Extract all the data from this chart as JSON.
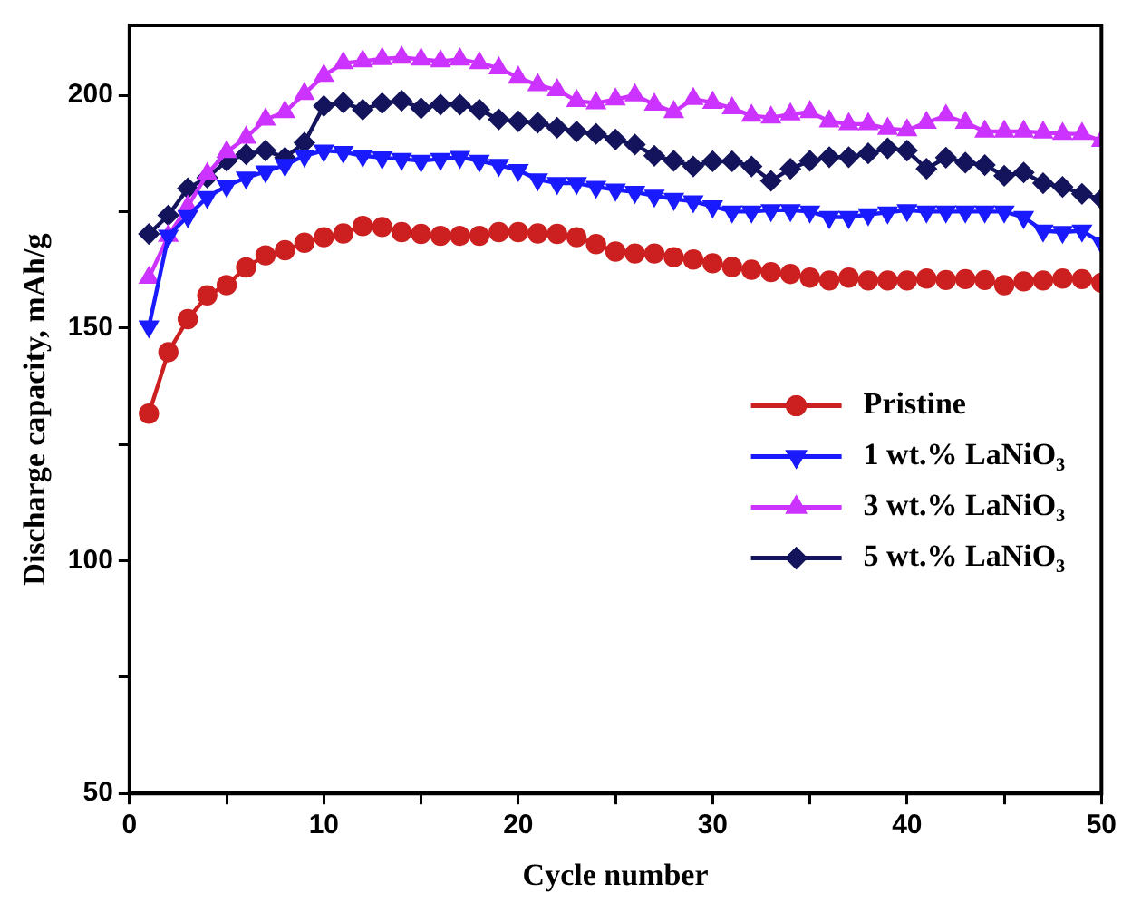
{
  "chart_data": {
    "type": "line",
    "xlabel": "Cycle number",
    "ylabel": "Discharge capacity, mAh/g",
    "x": [
      1,
      2,
      3,
      4,
      5,
      6,
      7,
      8,
      9,
      10,
      11,
      12,
      13,
      14,
      15,
      16,
      17,
      18,
      19,
      20,
      21,
      22,
      23,
      24,
      25,
      26,
      27,
      28,
      29,
      30,
      31,
      32,
      33,
      34,
      35,
      36,
      37,
      38,
      39,
      40,
      41,
      42,
      43,
      44,
      45,
      46,
      47,
      48,
      49,
      50
    ],
    "xlim": [
      0,
      50
    ],
    "xticks": [
      0,
      {
        "value": 5,
        "label": null
      },
      10,
      {
        "value": 15,
        "label": null
      },
      20,
      {
        "value": 25,
        "label": null
      },
      30,
      {
        "value": 35,
        "label": null
      },
      40,
      {
        "value": 45,
        "label": null
      },
      50
    ],
    "ylim": [
      50,
      215
    ],
    "yticks": [
      50,
      {
        "value": 75,
        "label": null
      },
      100,
      {
        "value": 125,
        "label": null
      },
      150,
      {
        "value": 175,
        "label": null
      },
      200
    ],
    "grid": false,
    "legend": "center right",
    "line_style": "solid",
    "series": [
      {
        "name": "Pristine",
        "color": "#cc1f1f",
        "marker": "circle",
        "values": [
          131.6,
          144.8,
          151.9,
          157,
          159.2,
          163,
          165.6,
          166.7,
          168.3,
          169.5,
          170.3,
          171.9,
          171.7,
          170.6,
          170.2,
          169.8,
          169.8,
          169.8,
          170.6,
          170.6,
          170.3,
          170.2,
          169.5,
          168,
          166.4,
          166,
          166,
          165.2,
          164.7,
          163.9,
          163.1,
          162.5,
          162,
          161.6,
          160.8,
          160.2,
          160.8,
          160.2,
          160.2,
          160.2,
          160.6,
          160.3,
          160.5,
          160.3,
          159.2,
          160,
          160.2,
          160.6,
          160.5,
          159.7
        ]
      },
      {
        "name": "1 wt.% LaNiO₃",
        "color": "#1a1aff",
        "marker": "triangle-down",
        "values": [
          150.3,
          169.8,
          174,
          178.1,
          180.5,
          182.3,
          183.6,
          185,
          187,
          188.1,
          187.8,
          187,
          186.6,
          186.3,
          185.9,
          186.3,
          186.7,
          185.9,
          185,
          183.9,
          181.9,
          181.1,
          181.1,
          180.3,
          179.7,
          179.2,
          178.4,
          177.7,
          177.2,
          176.1,
          175,
          175,
          175.3,
          175.3,
          175,
          173.8,
          173.8,
          174.4,
          174.8,
          175.3,
          175,
          175,
          175,
          175,
          175,
          173.8,
          170.9,
          170.6,
          170.9,
          168.3
        ]
      },
      {
        "name": "3 wt.% LaNiO₃",
        "color": "#cc33ff",
        "marker": "triangle",
        "values": [
          160.8,
          169.8,
          176.1,
          183.1,
          187.8,
          190.9,
          194.8,
          196.4,
          200.3,
          204.2,
          206.9,
          207.3,
          207.8,
          208.1,
          207.7,
          207.3,
          207.7,
          206.9,
          205.8,
          203.8,
          202.2,
          201.1,
          198.8,
          198.3,
          199.1,
          200,
          198,
          196.4,
          199.2,
          198.4,
          197.2,
          195.6,
          195.2,
          195.9,
          196.4,
          194.4,
          193.8,
          193.8,
          192.8,
          192.5,
          194.1,
          195.6,
          194.1,
          192.2,
          192.2,
          192.2,
          192,
          191.7,
          191.7,
          190.2
        ]
      },
      {
        "name": "5 wt.% LaNiO₃",
        "color": "#14145c",
        "marker": "diamond",
        "values": [
          170.2,
          174.2,
          180,
          182.3,
          185.9,
          187.3,
          188.1,
          186.6,
          189.8,
          197.7,
          198.4,
          196.9,
          198.3,
          198.8,
          197.2,
          198,
          198,
          196.9,
          194.8,
          194.4,
          194.1,
          193,
          192.2,
          191.7,
          190.5,
          189.4,
          187,
          185.9,
          184.7,
          185.8,
          185.8,
          184.7,
          181.6,
          184.2,
          185.9,
          186.7,
          186.7,
          187.5,
          188.6,
          188.1,
          184.2,
          186.6,
          185.5,
          185,
          182.7,
          183.4,
          181.1,
          180.3,
          178.8,
          177.7
        ]
      }
    ]
  }
}
